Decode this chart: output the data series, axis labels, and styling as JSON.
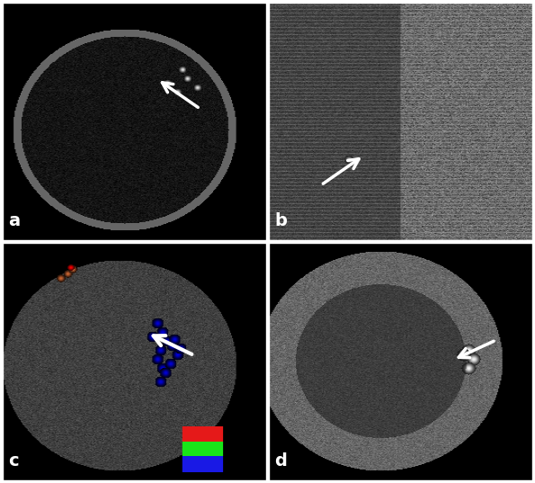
{
  "figure_width": 5.95,
  "figure_height": 5.37,
  "dpi": 100,
  "border_color": "#ffffff",
  "background_color": "#000000",
  "panel_labels": [
    "a",
    "b",
    "c",
    "d"
  ],
  "label_color": "#ffffff",
  "label_fontsize": 14
}
